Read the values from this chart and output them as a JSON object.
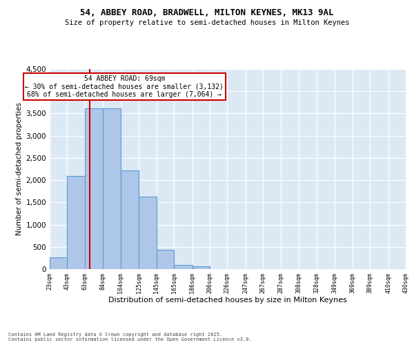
{
  "title_line1": "54, ABBEY ROAD, BRADWELL, MILTON KEYNES, MK13 9AL",
  "title_line2": "Size of property relative to semi-detached houses in Milton Keynes",
  "xlabel": "Distribution of semi-detached houses by size in Milton Keynes",
  "ylabel": "Number of semi-detached properties",
  "footnote": "Contains HM Land Registry data © Crown copyright and database right 2025.\nContains public sector information licensed under the Open Government Licence v3.0.",
  "bar_edges": [
    23,
    43,
    63,
    84,
    104,
    125,
    145,
    165,
    186,
    206,
    226,
    247,
    267,
    287,
    308,
    328,
    349,
    369,
    389,
    410,
    430
  ],
  "bar_heights": [
    270,
    2100,
    3620,
    3620,
    2220,
    1630,
    440,
    95,
    55,
    0,
    0,
    0,
    0,
    0,
    0,
    0,
    0,
    0,
    0,
    0
  ],
  "bar_color": "#aec6e8",
  "bar_edge_color": "#5b9bd5",
  "property_size": 69,
  "vline_color": "#cc0000",
  "annotation_text": "54 ABBEY ROAD: 69sqm\n← 30% of semi-detached houses are smaller (3,132)\n68% of semi-detached houses are larger (7,064) →",
  "annotation_box_color": "#ffffff",
  "annotation_box_edge": "#cc0000",
  "ylim": [
    0,
    4500
  ],
  "yticks": [
    0,
    500,
    1000,
    1500,
    2000,
    2500,
    3000,
    3500,
    4000,
    4500
  ],
  "background_color": "#dce9f5",
  "grid_color": "#ffffff",
  "tick_labels": [
    "23sqm",
    "43sqm",
    "63sqm",
    "84sqm",
    "104sqm",
    "125sqm",
    "145sqm",
    "165sqm",
    "186sqm",
    "206sqm",
    "226sqm",
    "247sqm",
    "267sqm",
    "287sqm",
    "308sqm",
    "328sqm",
    "349sqm",
    "369sqm",
    "389sqm",
    "410sqm",
    "430sqm"
  ]
}
